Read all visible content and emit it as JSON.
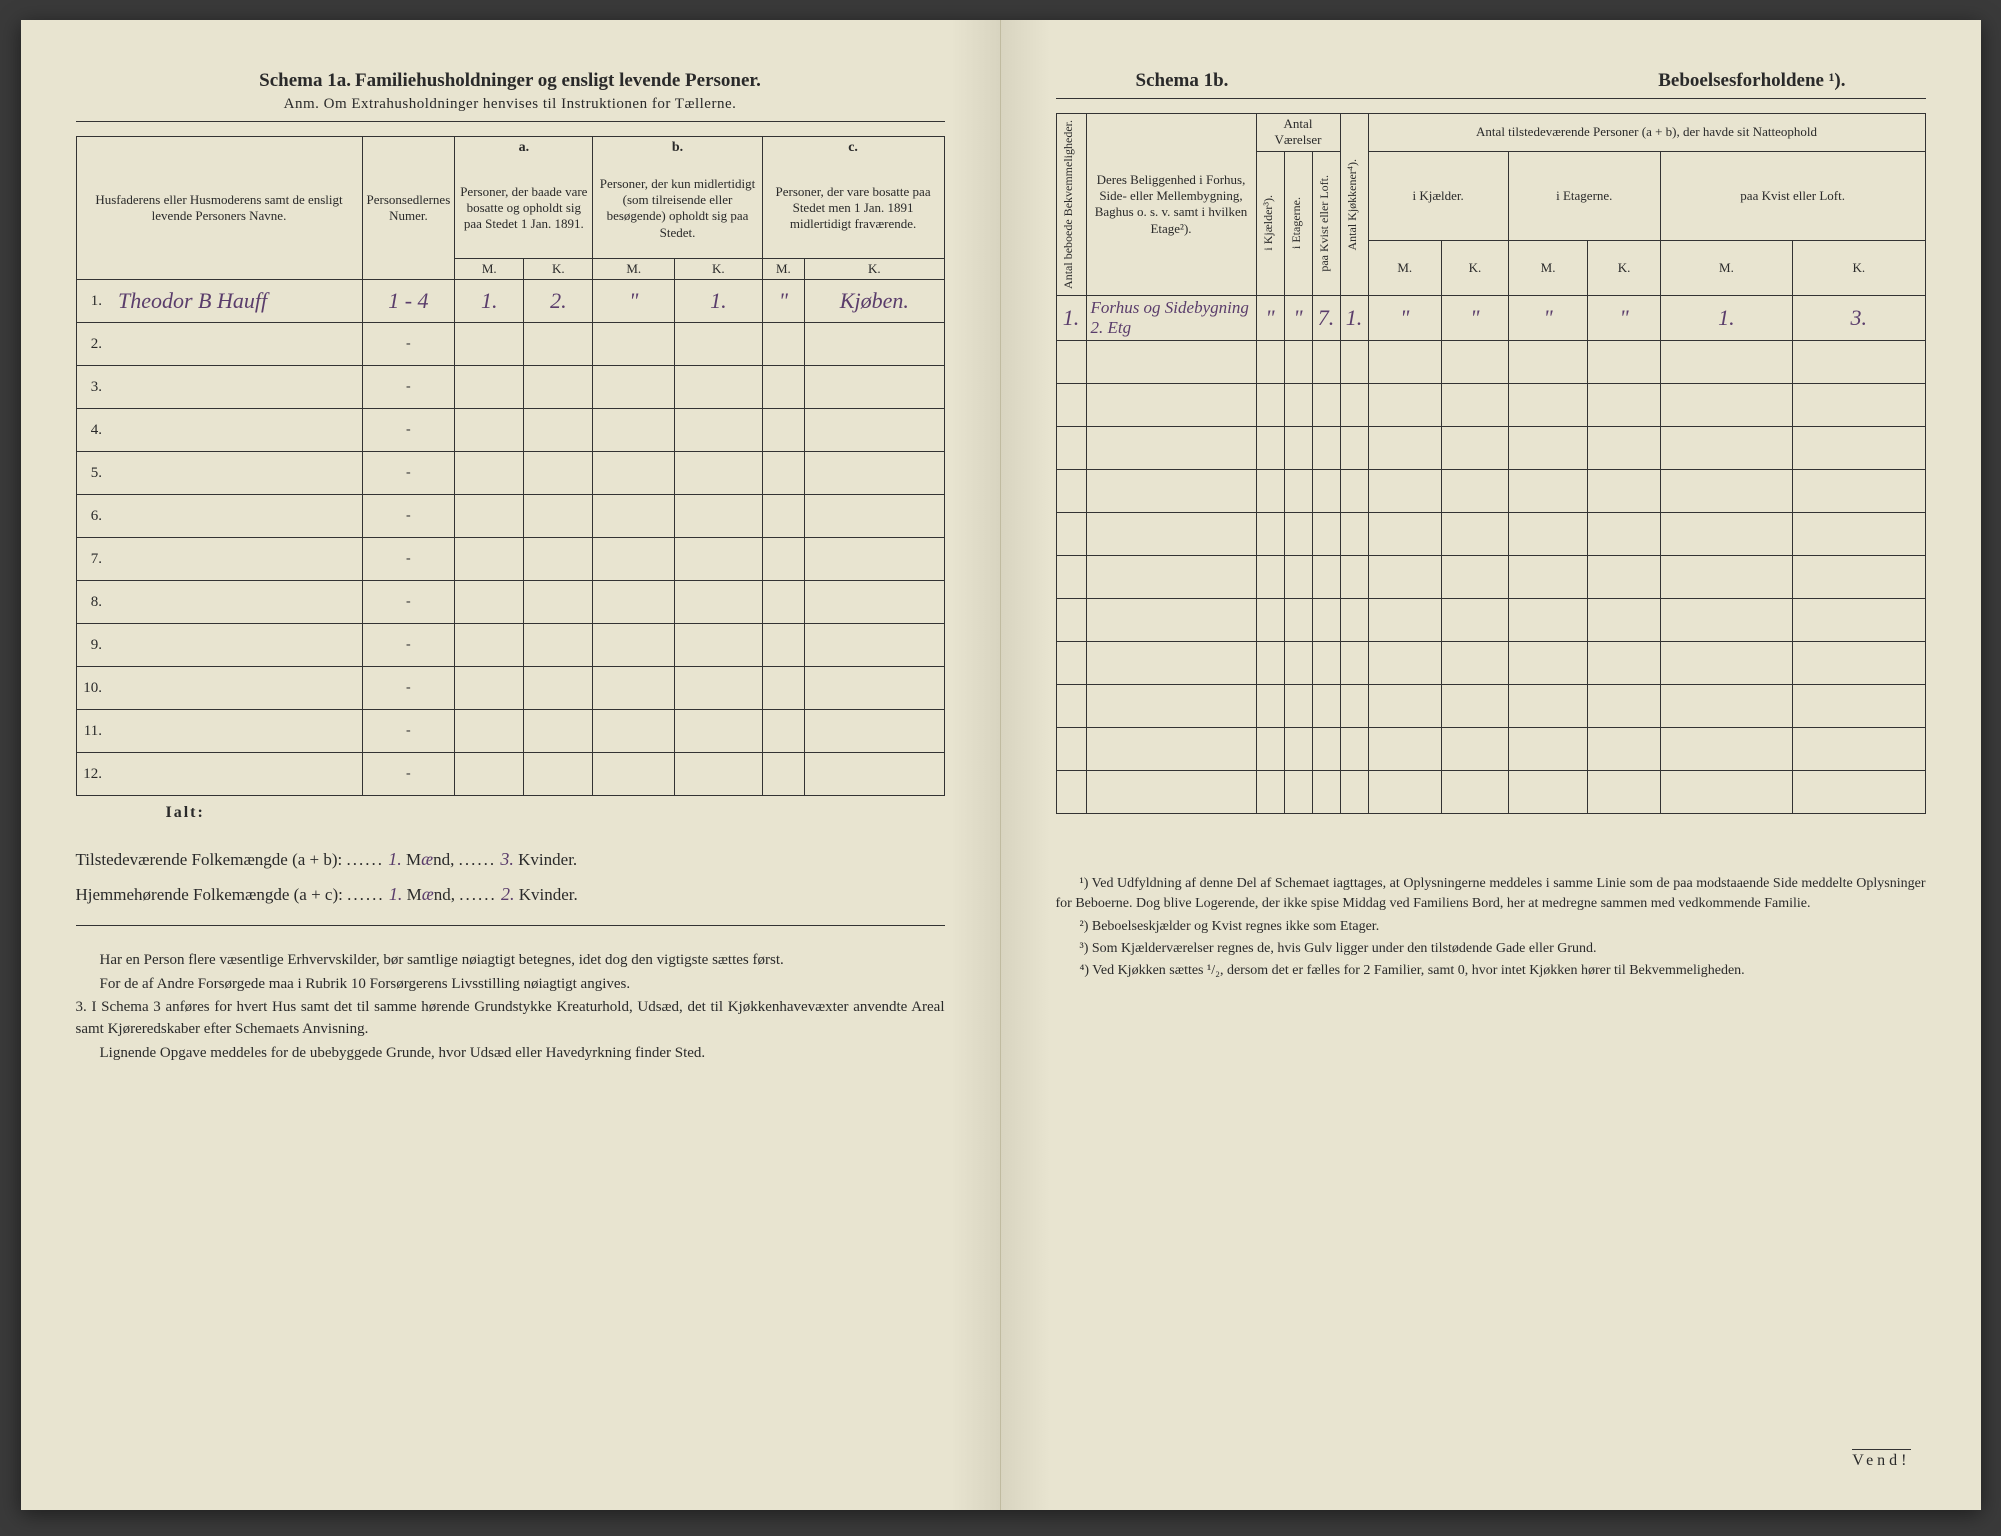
{
  "left": {
    "schema_label": "Schema 1a.",
    "schema_title": "Familiehusholdninger og ensligt levende Personer.",
    "anm": "Anm. Om Extrahusholdninger henvises til Instruktionen for Tællerne.",
    "col_name": "Husfaderens eller Husmoderens samt de ensligt levende Personers Navne.",
    "col_personsedler": "Personsedlernes Numer.",
    "col_a": "a.",
    "col_a_text": "Personer, der baade vare bosatte og opholdt sig paa Stedet 1 Jan. 1891.",
    "col_b": "b.",
    "col_b_text": "Personer, der kun midlertidigt (som tilreisende eller besøgende) opholdt sig paa Stedet.",
    "col_c": "c.",
    "col_c_text": "Personer, der vare bosatte paa Stedet men 1 Jan. 1891 midlertidigt fraværende.",
    "mk_m": "M.",
    "mk_k": "K.",
    "rows": [
      {
        "n": "1.",
        "name": "Theodor B Hauff",
        "ps": "1 - 4",
        "am": "1.",
        "ak": "2.",
        "bm": "\"",
        "bk": "1.",
        "cm": "\"",
        "ck": "Kjøben."
      },
      {
        "n": "2.",
        "name": "",
        "ps": "-",
        "am": "",
        "ak": "",
        "bm": "",
        "bk": "",
        "cm": "",
        "ck": ""
      },
      {
        "n": "3.",
        "name": "",
        "ps": "-",
        "am": "",
        "ak": "",
        "bm": "",
        "bk": "",
        "cm": "",
        "ck": ""
      },
      {
        "n": "4.",
        "name": "",
        "ps": "-",
        "am": "",
        "ak": "",
        "bm": "",
        "bk": "",
        "cm": "",
        "ck": ""
      },
      {
        "n": "5.",
        "name": "",
        "ps": "-",
        "am": "",
        "ak": "",
        "bm": "",
        "bk": "",
        "cm": "",
        "ck": ""
      },
      {
        "n": "6.",
        "name": "",
        "ps": "-",
        "am": "",
        "ak": "",
        "bm": "",
        "bk": "",
        "cm": "",
        "ck": ""
      },
      {
        "n": "7.",
        "name": "",
        "ps": "-",
        "am": "",
        "ak": "",
        "bm": "",
        "bk": "",
        "cm": "",
        "ck": ""
      },
      {
        "n": "8.",
        "name": "",
        "ps": "-",
        "am": "",
        "ak": "",
        "bm": "",
        "bk": "",
        "cm": "",
        "ck": ""
      },
      {
        "n": "9.",
        "name": "",
        "ps": "-",
        "am": "",
        "ak": "",
        "bm": "",
        "bk": "",
        "cm": "",
        "ck": ""
      },
      {
        "n": "10.",
        "name": "",
        "ps": "-",
        "am": "",
        "ak": "",
        "bm": "",
        "bk": "",
        "cm": "",
        "ck": ""
      },
      {
        "n": "11.",
        "name": "",
        "ps": "-",
        "am": "",
        "ak": "",
        "bm": "",
        "bk": "",
        "cm": "",
        "ck": ""
      },
      {
        "n": "12.",
        "name": "",
        "ps": "-",
        "am": "",
        "ak": "",
        "bm": "",
        "bk": "",
        "cm": "",
        "ck": ""
      }
    ],
    "ialt": "Ialt:",
    "sum1_label": "Tilstedeværende Folkemængde (a + b):",
    "sum1_m": "1.",
    "sum1_mword": "Mænd,",
    "sum1_k": "3.",
    "sum1_kword": "Kvinder.",
    "sum2_label": "Hjemmehørende Folkemængde (a + c):",
    "sum2_m": "1.",
    "sum2_mword": "Mænd,",
    "sum2_k": "2.",
    "sum2_kword": "Kvinder.",
    "note1": "Har en Person flere væsentlige Erhvervskilder, bør samtlige nøiagtigt betegnes, idet dog den vigtigste sættes først.",
    "note2": "For de af Andre Forsørgede maa i Rubrik 10 Forsørgerens Livsstilling nøiagtigt angives.",
    "note3_num": "3.",
    "note3": "I Schema 3 anføres for hvert Hus samt det til samme hørende Grundstykke Kreaturhold, Udsæd, det til Kjøkkenhavevæxter anvendte Areal samt Kjøreredskaber efter Schemaets Anvisning.",
    "note4": "Lignende Opgave meddeles for de ubebyggede Grunde, hvor Udsæd eller Havedyrkning finder Sted."
  },
  "right": {
    "schema_label": "Schema 1b.",
    "schema_title": "Beboelsesforholdene ¹).",
    "col_antal_bek": "Antal beboede Bekvemmeligheder.",
    "col_beligg": "Deres Beliggenhed i Forhus, Side- eller Mellembygning, Baghus o. s. v. samt i hvilken Etage²).",
    "col_antal_vaer": "Antal Værelser",
    "col_kjaelder": "i Kjælder³).",
    "col_etag": "i Etagerne.",
    "col_kvist": "paa Kvist eller Loft.",
    "col_kjokken": "Antal Kjøkkener⁴).",
    "col_tilstede": "Antal tilstedeværende Personer (a + b), der havde sit Natteophold",
    "col_t_kjael": "i Kjælder.",
    "col_t_etag": "i Etagerne.",
    "col_t_kvist": "paa Kvist eller Loft.",
    "mk_m": "M.",
    "mk_k": "K.",
    "rows": [
      {
        "n": "1.",
        "beligg": "Forhus og Sidebygning 2. Etg",
        "kj": "\"",
        "et": "\"",
        "kv": "7.",
        "kk": "1.",
        "tkjm": "\"",
        "tkjk": "\"",
        "tetm": "\"",
        "tetk": "\"",
        "tkvm": "1.",
        "tkvk": "3."
      },
      {
        "n": "",
        "beligg": "",
        "kj": "",
        "et": "",
        "kv": "",
        "kk": "",
        "tkjm": "",
        "tkjk": "",
        "tetm": "",
        "tetk": "",
        "tkvm": "",
        "tkvk": ""
      },
      {
        "n": "",
        "beligg": "",
        "kj": "",
        "et": "",
        "kv": "",
        "kk": "",
        "tkjm": "",
        "tkjk": "",
        "tetm": "",
        "tetk": "",
        "tkvm": "",
        "tkvk": ""
      },
      {
        "n": "",
        "beligg": "",
        "kj": "",
        "et": "",
        "kv": "",
        "kk": "",
        "tkjm": "",
        "tkjk": "",
        "tetm": "",
        "tetk": "",
        "tkvm": "",
        "tkvk": ""
      },
      {
        "n": "",
        "beligg": "",
        "kj": "",
        "et": "",
        "kv": "",
        "kk": "",
        "tkjm": "",
        "tkjk": "",
        "tetm": "",
        "tetk": "",
        "tkvm": "",
        "tkvk": ""
      },
      {
        "n": "",
        "beligg": "",
        "kj": "",
        "et": "",
        "kv": "",
        "kk": "",
        "tkjm": "",
        "tkjk": "",
        "tetm": "",
        "tetk": "",
        "tkvm": "",
        "tkvk": ""
      },
      {
        "n": "",
        "beligg": "",
        "kj": "",
        "et": "",
        "kv": "",
        "kk": "",
        "tkjm": "",
        "tkjk": "",
        "tetm": "",
        "tetk": "",
        "tkvm": "",
        "tkvk": ""
      },
      {
        "n": "",
        "beligg": "",
        "kj": "",
        "et": "",
        "kv": "",
        "kk": "",
        "tkjm": "",
        "tkjk": "",
        "tetm": "",
        "tetk": "",
        "tkvm": "",
        "tkvk": ""
      },
      {
        "n": "",
        "beligg": "",
        "kj": "",
        "et": "",
        "kv": "",
        "kk": "",
        "tkjm": "",
        "tkjk": "",
        "tetm": "",
        "tetk": "",
        "tkvm": "",
        "tkvk": ""
      },
      {
        "n": "",
        "beligg": "",
        "kj": "",
        "et": "",
        "kv": "",
        "kk": "",
        "tkjm": "",
        "tkjk": "",
        "tetm": "",
        "tetk": "",
        "tkvm": "",
        "tkvk": ""
      },
      {
        "n": "",
        "beligg": "",
        "kj": "",
        "et": "",
        "kv": "",
        "kk": "",
        "tkjm": "",
        "tkjk": "",
        "tetm": "",
        "tetk": "",
        "tkvm": "",
        "tkvk": ""
      },
      {
        "n": "",
        "beligg": "",
        "kj": "",
        "et": "",
        "kv": "",
        "kk": "",
        "tkjm": "",
        "tkjk": "",
        "tetm": "",
        "tetk": "",
        "tkvm": "",
        "tkvk": ""
      }
    ],
    "fn1": "¹) Ved Udfyldning af denne Del af Schemaet iagttages, at Oplysningerne meddeles i samme Linie som de paa modstaaende Side meddelte Oplysninger for Beboerne. Dog blive Logerende, der ikke spise Middag ved Familiens Bord, her at medregne sammen med vedkommende Familie.",
    "fn2": "²) Beboelseskjælder og Kvist regnes ikke som Etager.",
    "fn3": "³) Som Kjælderværelser regnes de, hvis Gulv ligger under den tilstødende Gade eller Grund.",
    "fn4": "⁴) Ved Kjøkken sættes ¹/₂, dersom det er fælles for 2 Familier, samt 0, hvor intet Kjøkken hører til Bekvemmeligheden.",
    "vend": "Vend!"
  }
}
